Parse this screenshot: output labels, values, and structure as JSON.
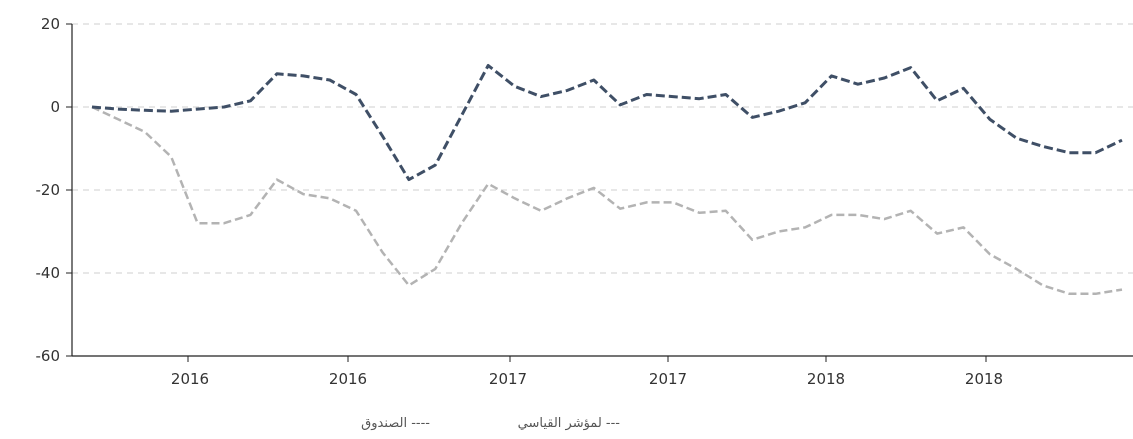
{
  "chart_data": {
    "type": "line",
    "ylim": [
      -60,
      20
    ],
    "yticks": [
      20,
      0,
      -20,
      -40,
      -60
    ],
    "x_tick_labels": [
      "2016",
      "2016",
      "2016",
      "2017",
      "2017",
      "2017",
      "2018",
      "2018",
      "2018"
    ],
    "grid": "horizontal dashed",
    "legend_position": "bottom-center",
    "series": [
      {
        "name": "الصندوق ----",
        "color": "#3f4f66",
        "values": [
          0,
          -0.5,
          -0.8,
          -1,
          -0.5,
          0,
          1.5,
          8,
          7.5,
          6.5,
          3,
          -7,
          -17.5,
          -14,
          -2,
          10,
          5,
          2.5,
          4,
          6.5,
          0.5,
          3,
          2.5,
          2,
          3,
          -2.5,
          -1,
          1,
          7.5,
          5.5,
          7,
          9.5,
          1.5,
          4.5,
          -3,
          -7.5,
          -9.5,
          -11,
          -11,
          -8
        ]
      },
      {
        "name": "لمؤشر القياسي ---",
        "color": "#b3b3b3",
        "values": [
          0,
          -3,
          -6,
          -12,
          -28,
          -28,
          -26,
          -17.5,
          -21,
          -22,
          -25,
          -35,
          -43,
          -39,
          -28,
          -18.5,
          -22,
          -25,
          -22,
          -19.5,
          -24.5,
          -23,
          -23,
          -25.5,
          -25,
          -32,
          -30,
          -29,
          -26,
          -26,
          -27,
          -25,
          -30.5,
          -29,
          -35.5,
          -39,
          -43,
          -45,
          -45,
          -44
        ]
      }
    ]
  }
}
